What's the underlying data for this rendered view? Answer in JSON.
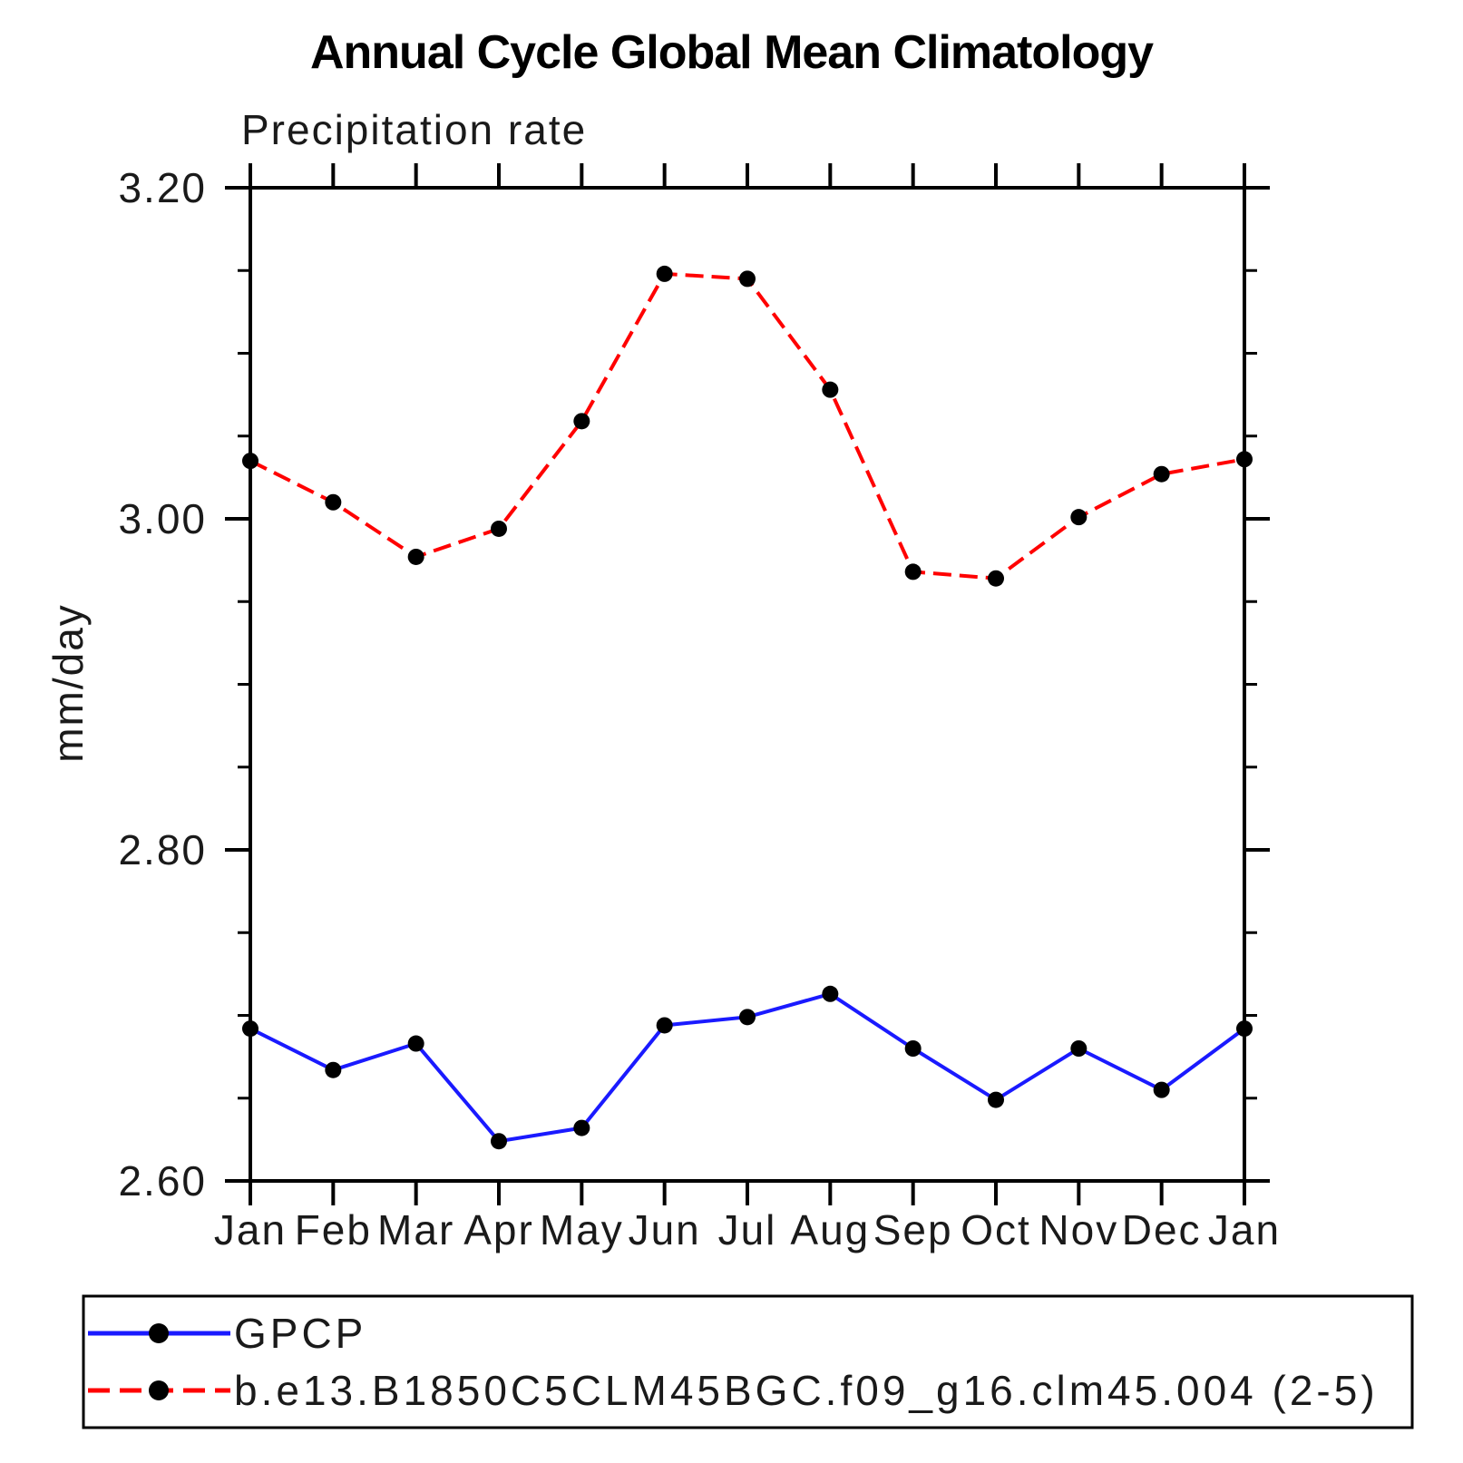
{
  "chart_data": {
    "type": "line",
    "title": "Annual Cycle Global Mean Climatology",
    "subtitle": "Precipitation rate",
    "ylabel": "mm/day",
    "categories": [
      "Jan",
      "Feb",
      "Mar",
      "Apr",
      "May",
      "Jun",
      "Jul",
      "Aug",
      "Sep",
      "Oct",
      "Nov",
      "Dec",
      "Jan"
    ],
    "ylim": [
      2.6,
      3.2
    ],
    "ytick_major": [
      2.6,
      2.8,
      3.0,
      3.2
    ],
    "ytick_labels": [
      "2.60",
      "2.80",
      "3.00",
      "3.20"
    ],
    "ytick_minor_step": 0.05,
    "grid": false,
    "legend_position": "bottom",
    "axis_color": "#000000",
    "marker_color": "#000000",
    "series": [
      {
        "name": "GPCP",
        "color": "#1a1aff",
        "style": "solid",
        "marker": "circle",
        "values": [
          2.692,
          2.667,
          2.683,
          2.624,
          2.632,
          2.694,
          2.699,
          2.713,
          2.68,
          2.649,
          2.68,
          2.655,
          2.692
        ]
      },
      {
        "name": "b.e13.B1850C5CLM45BGC.f09_g16.clm45.004 (2-5)",
        "color": "#ff0000",
        "style": "dashed",
        "marker": "circle",
        "values": [
          3.035,
          3.01,
          2.977,
          2.994,
          3.059,
          3.148,
          3.145,
          3.078,
          2.968,
          2.964,
          3.001,
          3.027,
          3.036
        ]
      }
    ]
  }
}
